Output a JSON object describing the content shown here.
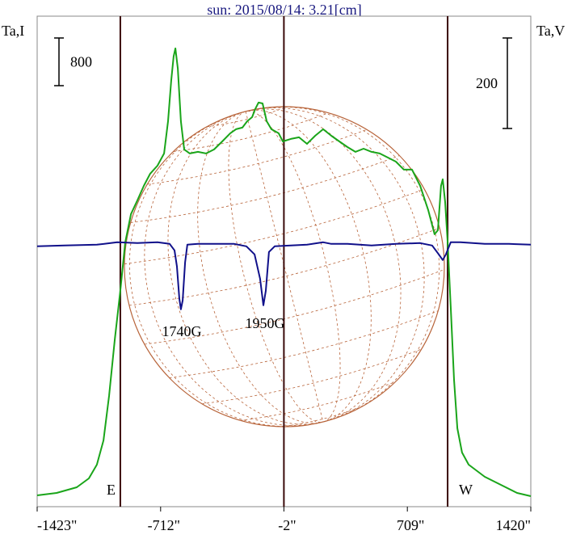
{
  "chart_data": {
    "type": "line",
    "title": "sun: 2015/08/14: 3.21[cm]",
    "y_label": "Ta,I",
    "y2_label": "Ta,V",
    "xlim": [
      -1423,
      1420
    ],
    "xticks": [
      {
        "value": -1423,
        "label": "-1423\""
      },
      {
        "value": -712,
        "label": "-712\""
      },
      {
        "value": -2,
        "label": "-2\""
      },
      {
        "value": 709,
        "label": "709\""
      },
      {
        "value": 1420,
        "label": "1420\""
      }
    ],
    "ylim": [
      0,
      8230
    ],
    "y2lim": [
      -579,
      505
    ],
    "scale_bars": [
      {
        "axis": "y",
        "value": 800
      },
      {
        "axis": "y2",
        "value": 200
      }
    ],
    "vlines": [
      {
        "x": -944,
        "label": "E"
      },
      {
        "x": -2
      },
      {
        "x": 941,
        "label": "W"
      }
    ],
    "annotations": [
      {
        "text": "1740G"
      },
      {
        "text": "1950G"
      }
    ],
    "series": [
      {
        "color": "#1aa51a",
        "axis": "y",
        "x": [
          -1423,
          -1311,
          -1195,
          -1125,
          -1079,
          -1041,
          -1009,
          -976,
          -944,
          -916,
          -883,
          -846,
          -809,
          -772,
          -730,
          -692,
          -669,
          -651,
          -637,
          -627,
          -613,
          -595,
          -576,
          -544,
          -497,
          -450,
          -404,
          -357,
          -311,
          -278,
          -241,
          -213,
          -185,
          -167,
          -148,
          -125,
          -101,
          -74,
          -32,
          -8,
          38,
          85,
          131,
          178,
          224,
          271,
          317,
          364,
          410,
          457,
          503,
          550,
          596,
          643,
          689,
          736,
          783,
          829,
          866,
          885,
          903,
          913,
          927,
          941,
          959,
          978,
          997,
          1024,
          1062,
          1155,
          1248,
          1341,
          1420
        ],
        "values": [
          190,
          231,
          325,
          475,
          705,
          1112,
          1858,
          2807,
          3621,
          4434,
          4909,
          5139,
          5383,
          5587,
          5722,
          5926,
          6468,
          7146,
          7553,
          7689,
          7350,
          6468,
          5994,
          5926,
          5953,
          5926,
          5994,
          6129,
          6265,
          6333,
          6360,
          6468,
          6536,
          6672,
          6780,
          6766,
          6468,
          6333,
          6265,
          6129,
          6170,
          6197,
          6088,
          6224,
          6333,
          6224,
          6129,
          6034,
          5953,
          6007,
          5953,
          5926,
          5858,
          5790,
          5655,
          5655,
          5383,
          4977,
          4570,
          4638,
          5383,
          5492,
          5112,
          4434,
          3349,
          2129,
          1315,
          909,
          705,
          502,
          366,
          231,
          176
        ]
      },
      {
        "color": "#10108a",
        "axis": "y2",
        "x": [
          -1423,
          -1265,
          -1079,
          -962,
          -846,
          -730,
          -660,
          -632,
          -618,
          -604,
          -595,
          -585,
          -571,
          -558,
          -497,
          -381,
          -288,
          -218,
          -171,
          -139,
          -120,
          -106,
          -88,
          -55,
          38,
          131,
          224,
          271,
          364,
          503,
          643,
          783,
          852,
          890,
          913,
          931,
          959,
          1015,
          1155,
          1294,
          1420
        ],
        "values": [
          -3.6,
          -1.8,
          0,
          5.4,
          3.6,
          5.4,
          1.8,
          -12.5,
          -48.2,
          -119.7,
          -142.9,
          -123.2,
          -39.3,
          0,
          1.8,
          1.8,
          1.8,
          -3.6,
          -21.4,
          -75,
          -134,
          -101.8,
          -16.1,
          -3.6,
          -1.8,
          0,
          5.4,
          1.8,
          1.8,
          -1.8,
          1.8,
          3.6,
          -1.8,
          -21.4,
          -33.9,
          -21.4,
          5.4,
          5.4,
          1.8,
          1.8,
          0
        ]
      }
    ]
  }
}
